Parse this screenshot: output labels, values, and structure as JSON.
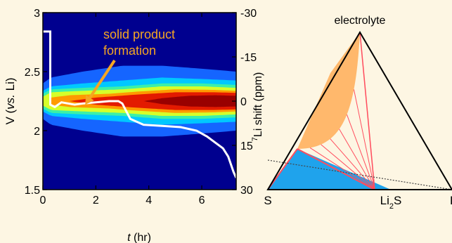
{
  "chart_data": [
    {
      "type": "heatmap",
      "xlabel": "t (hr)",
      "xlabel_parts": [
        "t",
        " (hr)"
      ],
      "ylabel": "V (vs. Li)",
      "ylabel_parts": [
        "V (",
        "vs.",
        " Li)"
      ],
      "y2label": "7Li shift (ppm)",
      "y2label_parts": [
        "7",
        "Li shift (ppm)"
      ],
      "xlim": [
        0,
        7.3
      ],
      "ylim": [
        1.5,
        3
      ],
      "y2lim": [
        30,
        -30
      ],
      "xticks": [
        0,
        2,
        4,
        6
      ],
      "yticks": [
        1.5,
        2,
        2.5,
        3
      ],
      "y2ticks": [
        -30,
        -15,
        0,
        15,
        30
      ],
      "xtick_labels": [
        "0",
        "2",
        "4",
        "6"
      ],
      "ytick_labels": [
        "1.5",
        "2",
        "2.5",
        "3"
      ],
      "y2tick_labels": [
        "-30",
        "-15",
        "0",
        "15",
        "30"
      ],
      "background_color": "#00008f",
      "annotation": {
        "lines": [
          "solid product",
          "formation"
        ],
        "color": "#f5a623",
        "arrow_target": [
          1.6,
          2.22
        ]
      },
      "heatmap": {
        "center_shift_ppm": [
          [
            0,
            0
          ],
          [
            0.3,
            0
          ],
          [
            2,
            0
          ],
          [
            3,
            0
          ],
          [
            4.5,
            0
          ],
          [
            6,
            0
          ],
          [
            7.3,
            0
          ]
        ],
        "contours": [
          {
            "color": "#1565ff",
            "halfwidth_ppm": [
              [
                0,
                6
              ],
              [
                0.3,
                8
              ],
              [
                1.5,
                10
              ],
              [
                3,
                12
              ],
              [
                4.5,
                12
              ],
              [
                6,
                11
              ],
              [
                7.3,
                10
              ]
            ]
          },
          {
            "color": "#00c8ff",
            "halfwidth_ppm": [
              [
                0,
                3.5
              ],
              [
                0.3,
                5
              ],
              [
                1.5,
                6
              ],
              [
                3,
                7
              ],
              [
                4.5,
                8
              ],
              [
                6,
                7.5
              ],
              [
                7.3,
                7
              ]
            ]
          },
          {
            "color": "#3cf0a8",
            "halfwidth_ppm": [
              [
                0,
                2.5
              ],
              [
                0.3,
                4
              ],
              [
                1.5,
                4.5
              ],
              [
                3,
                5
              ],
              [
                4.5,
                6
              ],
              [
                6,
                6
              ],
              [
                7.3,
                5.5
              ]
            ]
          },
          {
            "color": "#d6ff2a",
            "halfwidth_ppm": [
              [
                0,
                1.5
              ],
              [
                0.3,
                3
              ],
              [
                1.5,
                3.5
              ],
              [
                3,
                4
              ],
              [
                4.5,
                5
              ],
              [
                6,
                5
              ],
              [
                7.3,
                4.5
              ]
            ]
          },
          {
            "color": "#ff9a00",
            "halfwidth_ppm": [
              [
                0.3,
                1.2
              ],
              [
                1,
                2
              ],
              [
                2.5,
                2.5
              ],
              [
                3.5,
                3.2
              ],
              [
                5,
                4
              ],
              [
                6.5,
                3.8
              ],
              [
                7.3,
                3.5
              ]
            ]
          },
          {
            "color": "#e31a00",
            "halfwidth_ppm": [
              [
                1,
                0
              ],
              [
                2,
                1.2
              ],
              [
                3.5,
                2.2
              ],
              [
                5,
                3
              ],
              [
                6.5,
                3
              ],
              [
                7.3,
                2.8
              ]
            ]
          },
          {
            "color": "#990000",
            "halfwidth_ppm": [
              [
                3.8,
                0
              ],
              [
                4.5,
                1
              ],
              [
                5.5,
                1.8
              ],
              [
                6.5,
                2
              ],
              [
                7.3,
                1.8
              ]
            ]
          }
        ]
      },
      "series": [
        {
          "color": "#ffffff",
          "points": [
            [
              0,
              2.84
            ],
            [
              0.28,
              2.84
            ],
            [
              0.28,
              2.22
            ],
            [
              0.45,
              2.2
            ],
            [
              0.7,
              2.24
            ],
            [
              1.2,
              2.22
            ],
            [
              1.5,
              2.23
            ],
            [
              2,
              2.24
            ],
            [
              2.5,
              2.25
            ],
            [
              2.85,
              2.25
            ],
            [
              3.0,
              2.23
            ],
            [
              3.3,
              2.1
            ],
            [
              3.8,
              2.05
            ],
            [
              4.5,
              2.04
            ],
            [
              5.2,
              2.03
            ],
            [
              5.8,
              2.0
            ],
            [
              6.2,
              1.95
            ],
            [
              6.5,
              1.9
            ],
            [
              6.8,
              1.85
            ],
            [
              7.0,
              1.78
            ],
            [
              7.2,
              1.65
            ],
            [
              7.3,
              1.6
            ]
          ]
        }
      ]
    },
    {
      "type": "ternary-diagram",
      "vertex_top": "electrolyte",
      "vertex_left": "S",
      "vertex_right": "Li",
      "bottom_mark": "Li2S",
      "bottom_mark_parts": [
        "Li",
        "2",
        "S"
      ],
      "bottom_mark_position": 0.58,
      "colors": {
        "liquid_region": "#ffb86c",
        "solid_region": "#1fa3ec",
        "tie_lines": "#ff4d5e",
        "dotted_line": "#444444"
      }
    }
  ]
}
